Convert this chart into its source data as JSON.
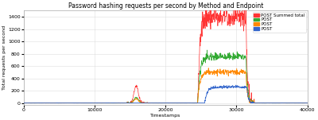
{
  "title": "Password hashing requests per second by Method and Endpoint",
  "xlabel": "Timestamps",
  "ylabel": "Total requests per second",
  "xlim": [
    0,
    40000
  ],
  "ylim": [
    -30,
    1500
  ],
  "yticks": [
    0,
    200,
    400,
    600,
    800,
    1000,
    1200,
    1400
  ],
  "xticks": [
    0,
    10000,
    20000,
    30000,
    40000
  ],
  "legend": [
    {
      "label": "POST Summed total",
      "color": "#ff3333"
    },
    {
      "label": "POST",
      "color": "#33aa33"
    },
    {
      "label": "POST",
      "color": "#ff8800"
    },
    {
      "label": "POST",
      "color": "#3366cc"
    }
  ],
  "background_color": "#ffffff",
  "grid_color": "#dddddd",
  "title_fontsize": 5.5,
  "axis_fontsize": 4.5,
  "tick_fontsize": 4.5,
  "legend_fontsize": 4.0,
  "pre_peak_start": 14500,
  "pre_peak_end": 17500,
  "pre_peak_height_red": 280,
  "pre_peak_height_green": 90,
  "pre_peak_height_orange": 70,
  "main_peak_start": 24500,
  "main_peak_end": 32500,
  "main_peak_height_red": 1400,
  "main_peak_height_green": 750,
  "main_peak_height_orange": 500,
  "main_peak_height_blue": 260,
  "blue_peak_start": 25500
}
